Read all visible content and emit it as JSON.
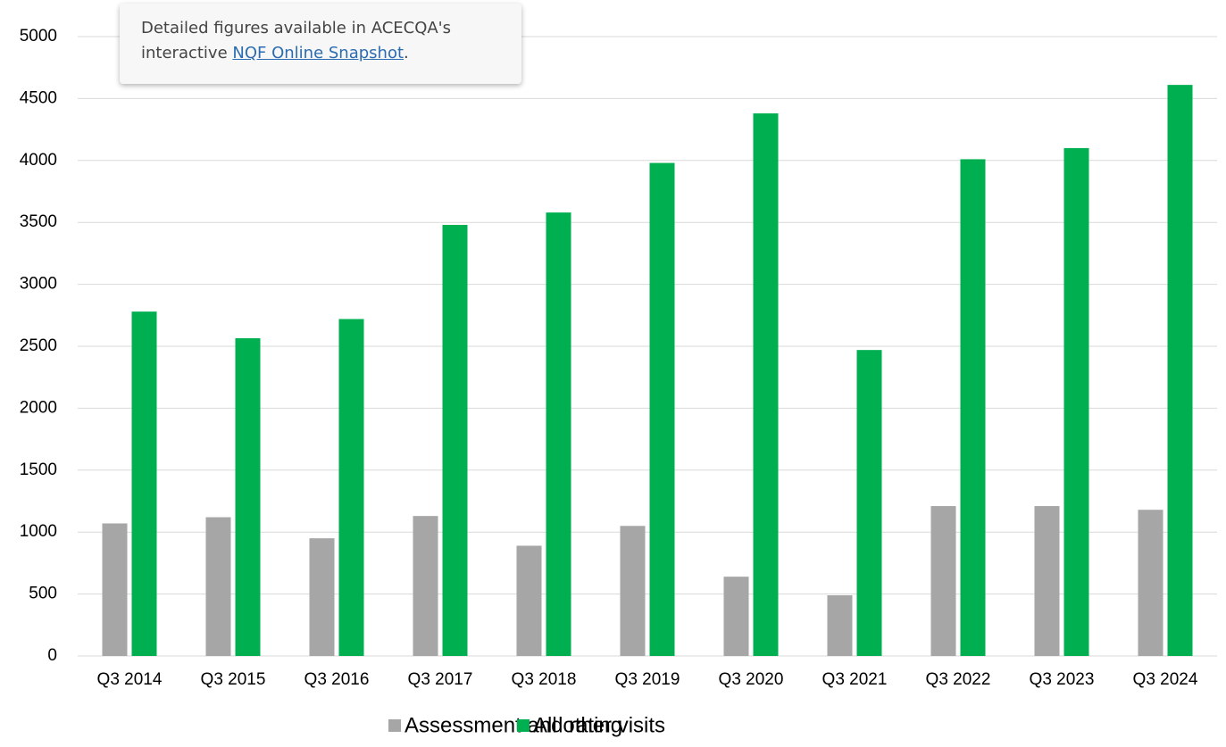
{
  "chart_data": {
    "type": "bar",
    "categories": [
      "Q3 2014",
      "Q3 2015",
      "Q3 2016",
      "Q3 2017",
      "Q3 2018",
      "Q3 2019",
      "Q3 2020",
      "Q3 2021",
      "Q3 2022",
      "Q3 2023",
      "Q3 2024"
    ],
    "series": [
      {
        "name": "Assessment and rating",
        "color": "#a6a6a6",
        "values": [
          1070,
          1120,
          950,
          1130,
          890,
          1050,
          640,
          490,
          1210,
          1210,
          1180
        ]
      },
      {
        "name": "All other visits",
        "color": "#00b050",
        "values": [
          2780,
          2565,
          2720,
          3480,
          3580,
          3980,
          4380,
          2470,
          4010,
          4100,
          4610
        ]
      }
    ],
    "ylim": [
      0,
      5000
    ],
    "yticks": [
      0,
      500,
      1000,
      1500,
      2000,
      2500,
      3000,
      3500,
      4000,
      4500,
      5000
    ],
    "grid": true,
    "legend": "bottom",
    "annotation": {
      "text": "Detailed figures available in ACECQA's interactive",
      "link": "NQF Online Snapshot",
      "after": "."
    }
  }
}
